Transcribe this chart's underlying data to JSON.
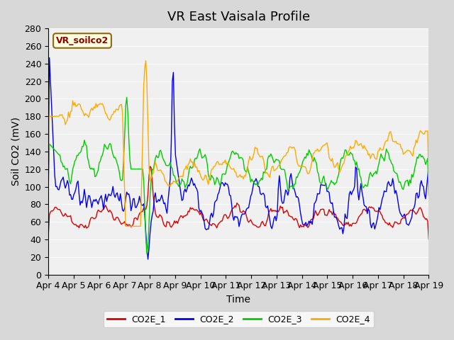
{
  "title": "VR East Vaisala Profile",
  "xlabel": "Time",
  "ylabel": "Soil CO2 (mV)",
  "legend_label": "VR_soilco2",
  "ylim": [
    0,
    280
  ],
  "series_labels": [
    "CO2E_1",
    "CO2E_2",
    "CO2E_3",
    "CO2E_4"
  ],
  "colors": [
    "#dd0000",
    "#0000ee",
    "#00cc00",
    "#ffaa00"
  ],
  "plot_bg_color": "#f0f0f0",
  "x_tick_labels": [
    "Apr 4",
    "Apr 5",
    "Apr 6",
    "Apr 7",
    "Apr 8",
    "Apr 9",
    "Apr 10",
    "Apr 11",
    "Apr 12",
    "Apr 13",
    "Apr 14",
    "Apr 15",
    "Apr 16",
    "Apr 17",
    "Apr 18",
    "Apr 19"
  ],
  "n_points": 360,
  "title_fontsize": 13,
  "axis_fontsize": 10,
  "tick_fontsize": 9
}
